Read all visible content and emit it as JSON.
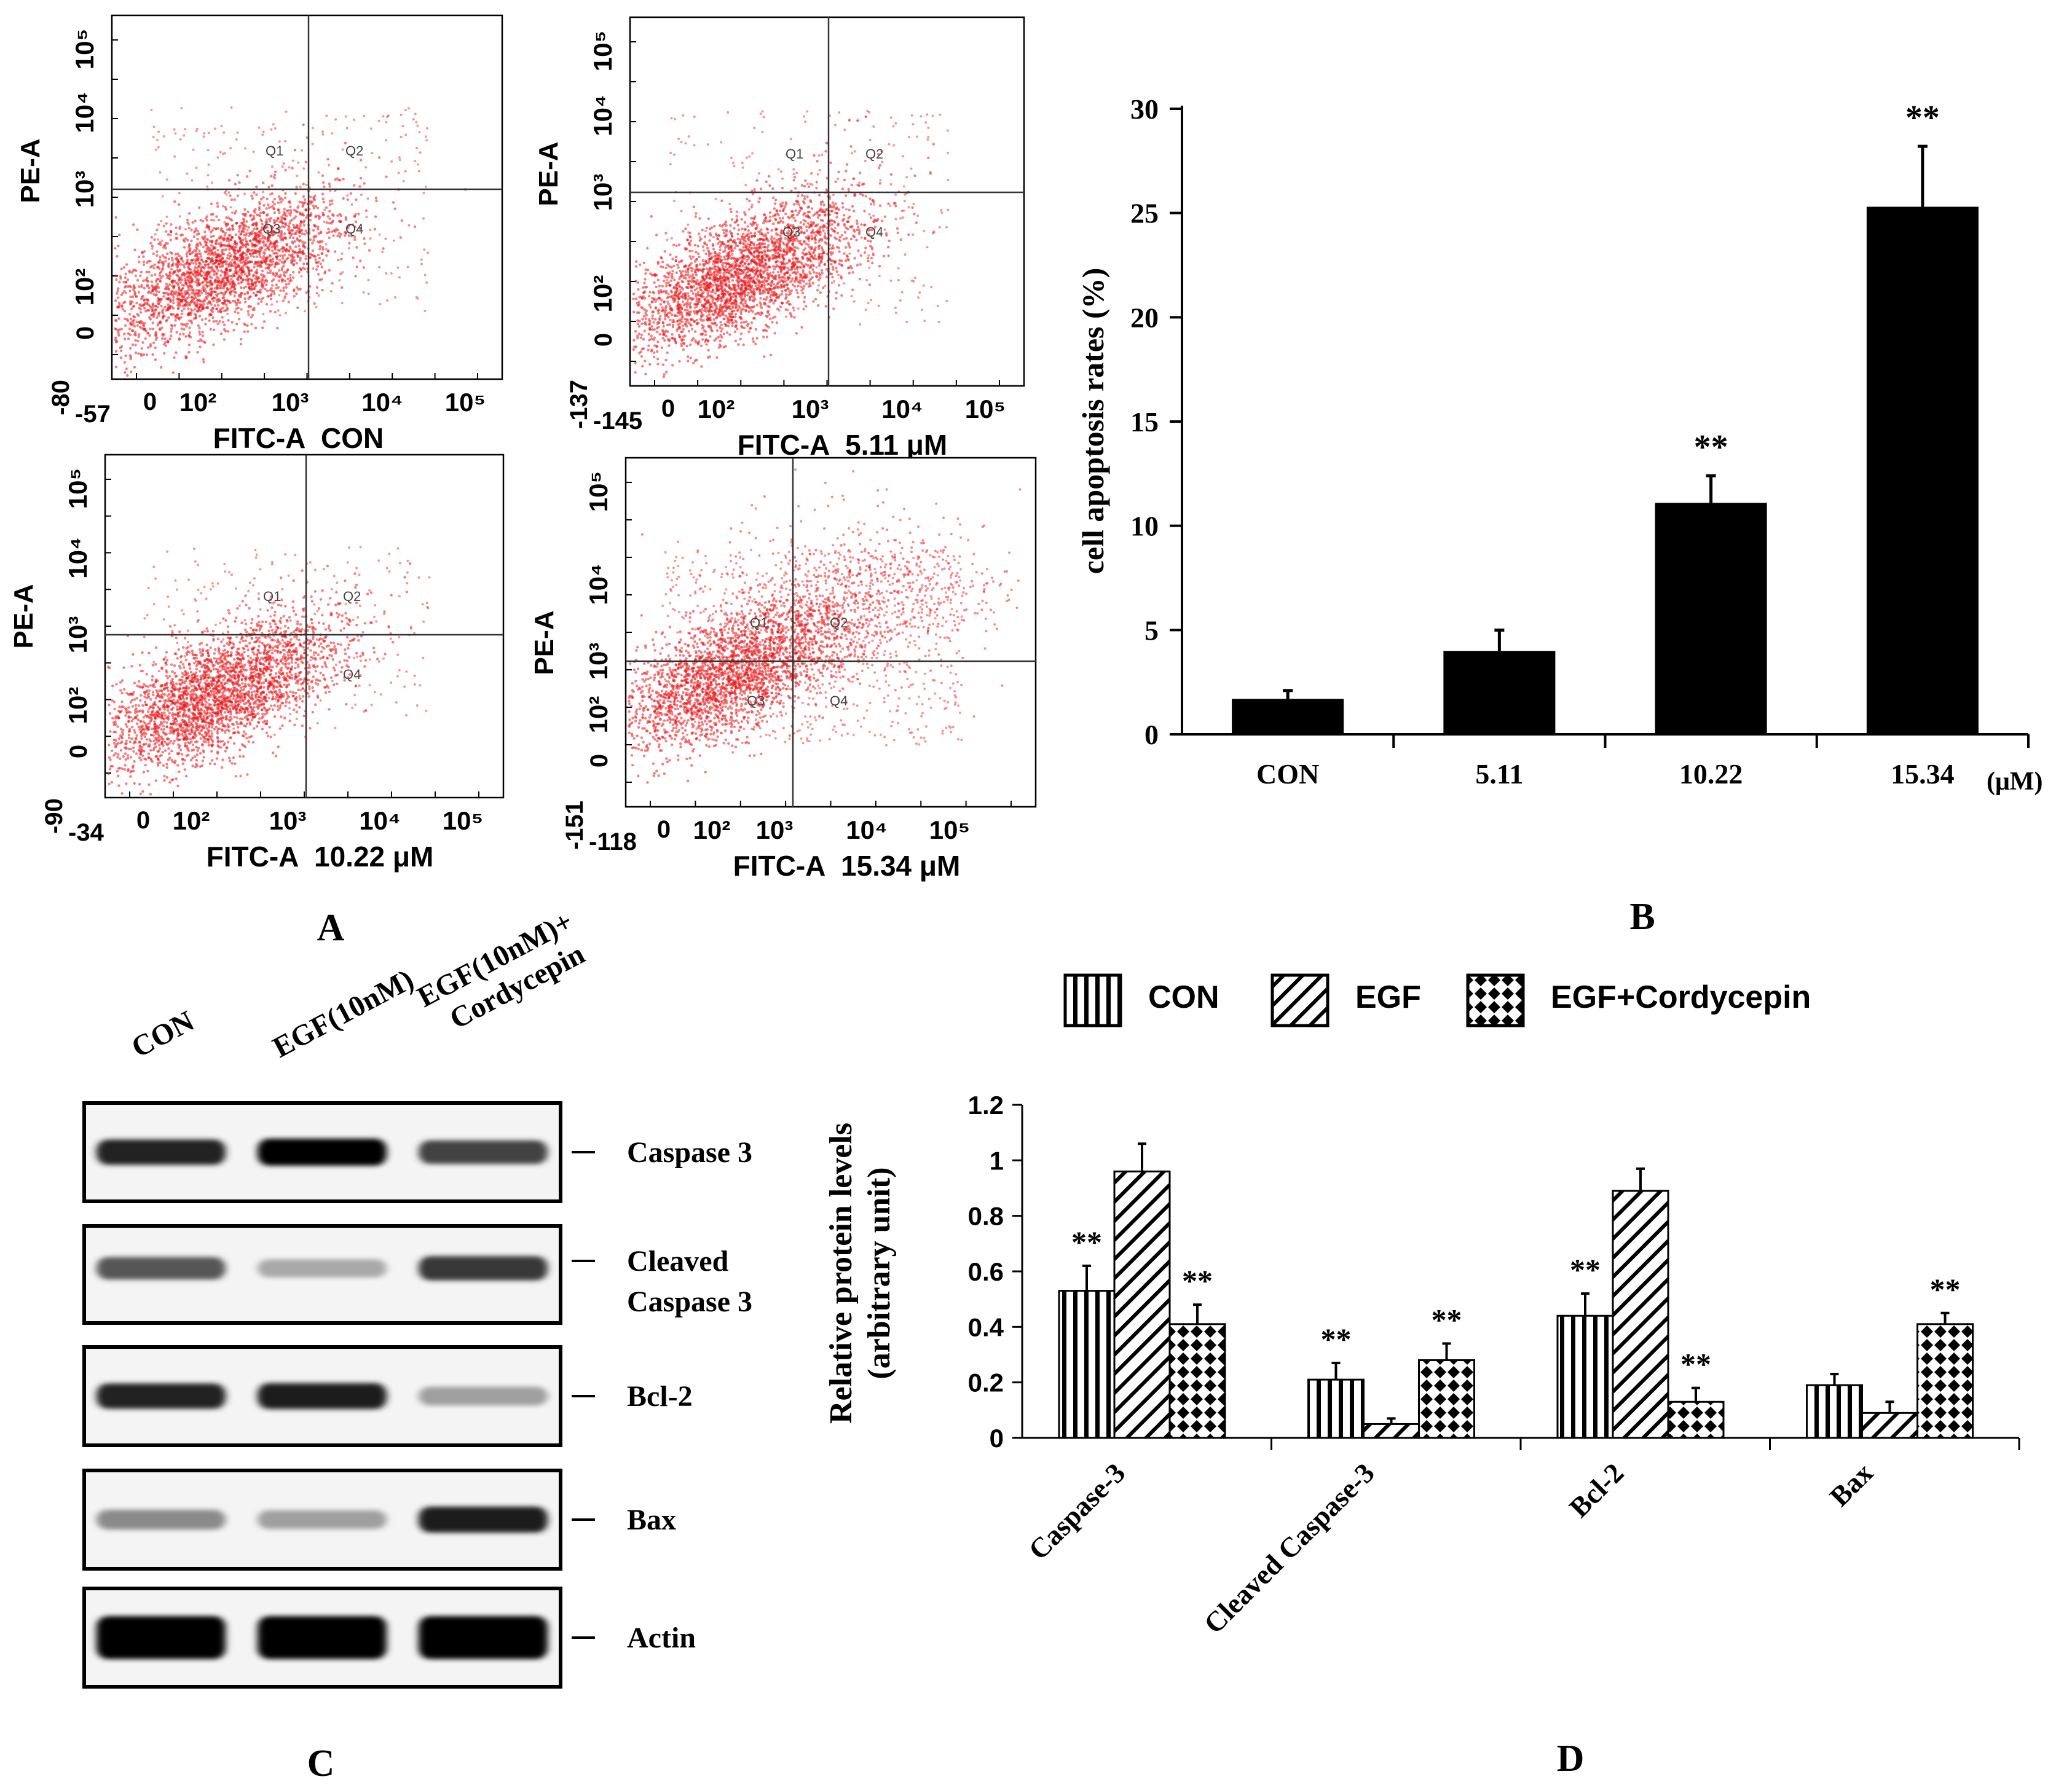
{
  "panel_labels": {
    "a": "A",
    "b": "B",
    "c": "C",
    "d": "D"
  },
  "flow": {
    "x_axis_label": "FITC-A",
    "y_axis_label": "PE-A",
    "quadrant_labels": [
      "Q1",
      "Q2",
      "Q3",
      "Q4"
    ],
    "log_tick_labels": [
      "10²",
      "10³",
      "10⁴",
      "10⁵"
    ],
    "zero_label": "0",
    "dot_color": "#e8181c",
    "plots": [
      {
        "condition": "CON",
        "x_min_label": "-57",
        "y_min_label": "-80",
        "has_q3_label": true,
        "density": "low"
      },
      {
        "condition": "5.11 μM",
        "x_min_label": "-145",
        "y_min_label": "-137",
        "has_q3_label": true,
        "density": "mid"
      },
      {
        "condition": "10.22 μM",
        "x_min_label": "-34",
        "y_min_label": "-90",
        "has_q3_label": false,
        "density": "mid"
      },
      {
        "condition": "15.34 μM",
        "x_min_label": "-118",
        "y_min_label": "-151",
        "has_q3_label": true,
        "density": "high"
      }
    ]
  },
  "western": {
    "lanes": [
      "CON",
      "EGF(10nM)",
      "EGF(10nM)+\nCordycepin"
    ],
    "lane_label_lines": [
      [
        "CON"
      ],
      [
        "EGF(10nM)"
      ],
      [
        "EGF(10nM)+",
        "Cordycepin"
      ]
    ],
    "blots": [
      {
        "label_lines": [
          "Caspase 3"
        ],
        "intensities": [
          0.85,
          1.0,
          0.7
        ]
      },
      {
        "label_lines": [
          "Cleaved",
          "Caspase 3"
        ],
        "intensities": [
          0.6,
          0.2,
          0.75
        ]
      },
      {
        "label_lines": [
          "Bcl-2"
        ],
        "intensities": [
          0.85,
          0.9,
          0.25
        ]
      },
      {
        "label_lines": [
          "Bax"
        ],
        "intensities": [
          0.35,
          0.25,
          0.9
        ]
      },
      {
        "label_lines": [
          "Actin"
        ],
        "intensities": [
          1.0,
          1.0,
          1.0
        ]
      }
    ]
  },
  "chart_data": [
    {
      "type": "bar",
      "panel": "B",
      "categories": [
        "CON",
        "5.11",
        "10.22",
        "15.34"
      ],
      "values": [
        1.7,
        4.0,
        11.1,
        25.3
      ],
      "errors": [
        0.4,
        1.0,
        1.3,
        2.9
      ],
      "significance": [
        "",
        "",
        "**",
        "**"
      ],
      "xunit": "(μM)",
      "ylabel": "cell apoptosis rates (%)",
      "ylim": [
        0,
        30
      ],
      "yticks": [
        "0",
        "5",
        "10",
        "15",
        "20",
        "25",
        "30"
      ],
      "bar_color": "#000000"
    },
    {
      "type": "bar",
      "panel": "D",
      "categories": [
        "Caspase-3",
        "Cleaved Caspase-3",
        "Bcl-2",
        "Bax"
      ],
      "series": [
        {
          "name": "CON",
          "pattern": "vertical",
          "values": [
            0.53,
            0.21,
            0.44,
            0.19
          ],
          "errors": [
            0.09,
            0.06,
            0.08,
            0.04
          ],
          "significance": [
            "**",
            "**",
            "**",
            ""
          ]
        },
        {
          "name": "EGF",
          "pattern": "diagonal",
          "values": [
            0.96,
            0.05,
            0.89,
            0.09
          ],
          "errors": [
            0.1,
            0.02,
            0.08,
            0.04
          ],
          "significance": [
            "",
            "",
            "",
            ""
          ]
        },
        {
          "name": "EGF+Cordycepin",
          "pattern": "checker",
          "values": [
            0.41,
            0.28,
            0.13,
            0.41
          ],
          "errors": [
            0.07,
            0.06,
            0.05,
            0.04
          ],
          "significance": [
            "**",
            "**",
            "**",
            "**"
          ]
        }
      ],
      "ylabel_lines": [
        "Relative protein levels",
        "(arbitrary unit)"
      ],
      "ylim": [
        0,
        1.2
      ],
      "yticks": [
        "0",
        "0.2",
        "0.4",
        "0.6",
        "0.8",
        "1",
        "1.2"
      ],
      "legend_position": "top"
    }
  ]
}
